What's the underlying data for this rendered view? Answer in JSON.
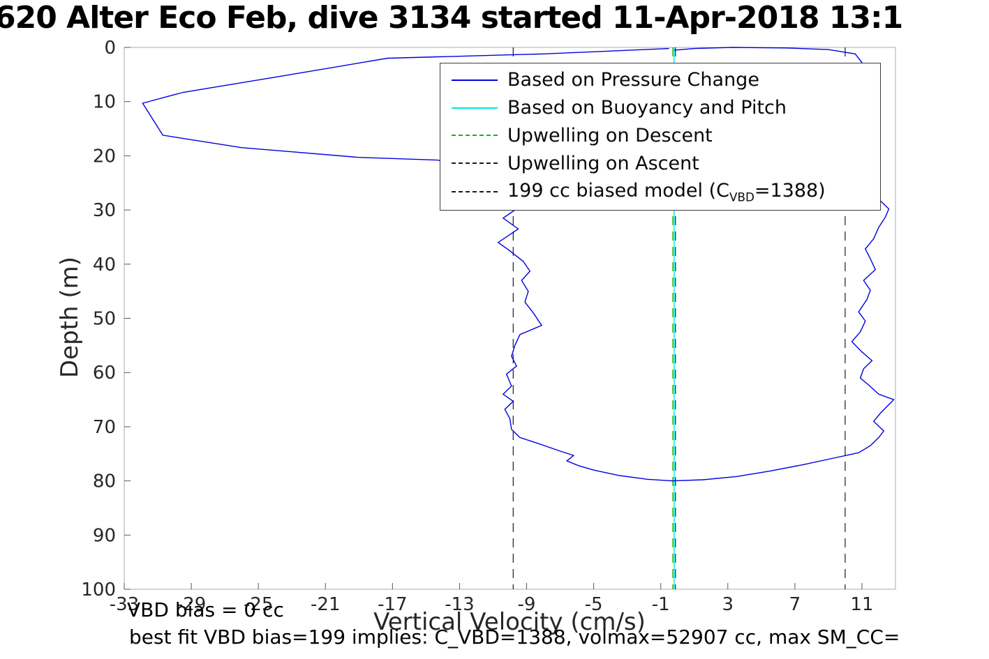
{
  "footer": {
    "vbd_bias_note": "VBD bias = 0 cc",
    "best_fit_note": "best fit VBD bias=199 implies: C_VBD=1388, volmax=52907 cc, max SM_CC="
  },
  "chart_data": {
    "type": "line",
    "title": "620 Alter Eco Feb, dive 3134 started 11-Apr-2018 13:1",
    "xlabel": "Vertical Velocity (cm/s)",
    "ylabel": "Depth (m)",
    "xlim": [
      -33,
      13
    ],
    "ylim": [
      0,
      100
    ],
    "y_direction": "down",
    "grid": false,
    "xticks": [
      -33,
      -29,
      -25,
      -21,
      -17,
      -13,
      -9,
      -5,
      -1,
      3,
      7,
      11
    ],
    "yticks": [
      0,
      10,
      20,
      30,
      40,
      50,
      60,
      70,
      80,
      90,
      100
    ],
    "colors": {
      "background": "#ffffff",
      "box": "#ababab",
      "axis_text": "#262626",
      "pressure_line": "#0000E0",
      "buoyancy_line": "#00E5E5",
      "upwelling_descent_line": "#00C000",
      "upwelling_ascent_line": "#1a1a1a",
      "biased_model_line": "#1a1a1a"
    },
    "legend": {
      "position": "top-right-inside",
      "entries": [
        {
          "label": "Based on Pressure Change",
          "color": "#0000E0",
          "dash": false
        },
        {
          "label": "Based on Buoyancy and Pitch",
          "color": "#00E5E5",
          "dash": false
        },
        {
          "label": "Upwelling on Descent",
          "color": "#00C000",
          "dash": true
        },
        {
          "label": "Upwelling on Ascent",
          "color": "#1a1a1a",
          "dash": true
        },
        {
          "label_pre": "199 cc biased model (C",
          "label_sub": "VBD",
          "label_post": "=1388)",
          "color": "#1a1a1a",
          "dash": true
        }
      ]
    },
    "series": [
      {
        "name": "based-on-buoyancy-and-pitch",
        "color": "#00E5E5",
        "dash": false,
        "width": 1.4,
        "segments": [
          [
            [
              -0.2,
              0
            ],
            [
              -0.2,
              100
            ]
          ]
        ]
      },
      {
        "name": "upwelling-on-descent",
        "color": "#00C000",
        "dash": true,
        "width": 1.4,
        "segments": [
          [
            [
              -0.28,
              0
            ],
            [
              -0.28,
              100
            ]
          ]
        ]
      },
      {
        "name": "upwelling-on-ascent",
        "color": "#1a1a1a",
        "dash": true,
        "width": 1.2,
        "segments": [
          [
            [
              -0.12,
              0
            ],
            [
              -0.12,
              100
            ]
          ]
        ]
      },
      {
        "name": "199cc-biased-model",
        "color": "#1a1a1a",
        "dash": true,
        "width": 1.2,
        "segments": [
          [
            [
              -9.8,
              0
            ],
            [
              -9.8,
              100
            ]
          ],
          [
            [
              10.0,
              0
            ],
            [
              10.0,
              100
            ]
          ]
        ]
      },
      {
        "name": "based-on-pressure-change",
        "color": "#0000E0",
        "dash": false,
        "width": 1.4,
        "segments": [
          [
            [
              -0.5,
              0.2
            ],
            [
              -8,
              1.2
            ],
            [
              -17.3,
              2
            ],
            [
              -24,
              5.5
            ],
            [
              -29.5,
              8.3
            ],
            [
              -31.9,
              10.3
            ],
            [
              -30.7,
              16.2
            ],
            [
              -26,
              18.5
            ],
            [
              -19,
              20.3
            ],
            [
              -14.3,
              20.8
            ],
            [
              -12,
              22.5
            ],
            [
              -10.6,
              25
            ],
            [
              -10,
              28
            ],
            [
              -9.7,
              30
            ],
            [
              -10.4,
              31.5
            ],
            [
              -9.5,
              33.5
            ],
            [
              -10.7,
              36
            ],
            [
              -10.1,
              37.3
            ],
            [
              -9.2,
              39.5
            ],
            [
              -8.8,
              41.3
            ],
            [
              -9.3,
              43
            ],
            [
              -8.9,
              45
            ],
            [
              -9.1,
              47
            ],
            [
              -8.6,
              49
            ],
            [
              -8.1,
              51.3
            ],
            [
              -9.4,
              53
            ],
            [
              -9.7,
              55
            ],
            [
              -9.9,
              57
            ],
            [
              -9.6,
              58.8
            ],
            [
              -10.2,
              60.3
            ],
            [
              -9.9,
              62.5
            ],
            [
              -10.4,
              64
            ],
            [
              -9.8,
              65.3
            ],
            [
              -10.3,
              66.8
            ],
            [
              -10,
              68.5
            ],
            [
              -9.9,
              70.5
            ],
            [
              -9.4,
              72
            ],
            [
              -8.4,
              73
            ],
            [
              -7,
              74.5
            ],
            [
              -6.2,
              75.3
            ],
            [
              -6.6,
              76.3
            ],
            [
              -5.9,
              77.2
            ],
            [
              -5,
              78
            ],
            [
              -3.5,
              79
            ],
            [
              -1.8,
              79.7
            ],
            [
              -0.3,
              80
            ],
            [
              1.5,
              79.8
            ],
            [
              3.5,
              79.2
            ],
            [
              5.5,
              78.2
            ],
            [
              7.5,
              77
            ],
            [
              9.3,
              75.8
            ],
            [
              10.8,
              74.8
            ],
            [
              11.5,
              73.5
            ],
            [
              12,
              72
            ],
            [
              12.3,
              70.8
            ],
            [
              11.7,
              69
            ],
            [
              12.1,
              67.5
            ],
            [
              12.9,
              65
            ],
            [
              12,
              64
            ],
            [
              11.4,
              62.3
            ],
            [
              10.9,
              61
            ],
            [
              11.1,
              59.3
            ],
            [
              11.6,
              57.8
            ],
            [
              11,
              56.2
            ],
            [
              10.4,
              54.3
            ],
            [
              10.9,
              52.5
            ],
            [
              11.2,
              50.5
            ],
            [
              10.8,
              48.8
            ],
            [
              11.3,
              46.5
            ],
            [
              11.5,
              44.8
            ],
            [
              11.1,
              43
            ],
            [
              11.8,
              41
            ],
            [
              11.5,
              39
            ],
            [
              11.2,
              37.2
            ],
            [
              11.7,
              35.3
            ],
            [
              12,
              33.2
            ],
            [
              12.4,
              31.3
            ],
            [
              12.6,
              29.8
            ],
            [
              12.1,
              28.3
            ],
            [
              11.8,
              26.5
            ],
            [
              11.6,
              24
            ],
            [
              11.9,
              21
            ],
            [
              11.7,
              18
            ],
            [
              11.8,
              15
            ],
            [
              11.6,
              12
            ],
            [
              11.8,
              9
            ],
            [
              11.5,
              6
            ],
            [
              11.2,
              3.8
            ],
            [
              11,
              2.8
            ],
            [
              10.6,
              1.2
            ],
            [
              9,
              0.4
            ],
            [
              6.5,
              0.1
            ],
            [
              3.3,
              0
            ],
            [
              1,
              0.2
            ],
            [
              -0.2,
              0.5
            ]
          ]
        ]
      }
    ]
  }
}
